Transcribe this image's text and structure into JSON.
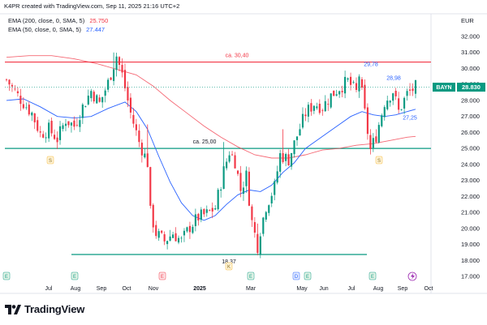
{
  "header": {
    "created": "K4PR created with TradingView.com, Sep 11, 2025 21:16 UTC+2",
    "currency": "EUR"
  },
  "indicators": [
    {
      "label": "EMA (200, close, 0, SMA, 5)",
      "value": "25.750",
      "color": "#f23645"
    },
    {
      "label": "EMA (50, close, 0, SMA, 5)",
      "value": "27.447",
      "color": "#2962ff"
    }
  ],
  "brand": {
    "name": "TradingView"
  },
  "chart_data": {
    "type": "candlestick",
    "symbol": "BAYN",
    "last_price": "28.830",
    "ylim": [
      17,
      33
    ],
    "y_ticks": [
      "17.000",
      "18.000",
      "19.000",
      "20.000",
      "21.000",
      "22.000",
      "23.000",
      "24.000",
      "25.000",
      "26.000",
      "27.000",
      "28.000",
      "29.000",
      "30.000",
      "31.000",
      "32.000"
    ],
    "x_ticks": [
      "Jul",
      "Aug",
      "Sep",
      "Oct",
      "Nov",
      "2025",
      "Mar",
      "May",
      "Jun",
      "Jul",
      "Aug",
      "Sep",
      "Oct"
    ],
    "price_path": [
      [
        0,
        29.3
      ],
      [
        4,
        28.3
      ],
      [
        9,
        27.2
      ],
      [
        12,
        25.9
      ],
      [
        15,
        26.2
      ],
      [
        18,
        25.6
      ],
      [
        21,
        26.8
      ],
      [
        24,
        26.4
      ],
      [
        27,
        27.6
      ],
      [
        30,
        28.6
      ],
      [
        33,
        27.8
      ],
      [
        36,
        29.1
      ],
      [
        39,
        30.8
      ],
      [
        41,
        29.6
      ],
      [
        44,
        27.2
      ],
      [
        47,
        25.4
      ],
      [
        50,
        24.1
      ],
      [
        51,
        21.0
      ],
      [
        53,
        19.7
      ],
      [
        56,
        19.2
      ],
      [
        59,
        19.7
      ],
      [
        62,
        19.2
      ],
      [
        65,
        20.1
      ],
      [
        68,
        20.7
      ],
      [
        71,
        20.9
      ],
      [
        74,
        21.3
      ],
      [
        77,
        23.6
      ],
      [
        79,
        24.8
      ],
      [
        81,
        24.2
      ],
      [
        83,
        22.4
      ],
      [
        85,
        23.3
      ],
      [
        87,
        20.4
      ],
      [
        89,
        18.9
      ],
      [
        90,
        19.9
      ],
      [
        92,
        21.4
      ],
      [
        95,
        22.6
      ],
      [
        97,
        24.6
      ],
      [
        100,
        24.3
      ],
      [
        103,
        25.8
      ],
      [
        106,
        27.2
      ],
      [
        109,
        27.8
      ],
      [
        112,
        27.6
      ],
      [
        115,
        28.3
      ],
      [
        118,
        28.8
      ],
      [
        121,
        29.2
      ],
      [
        124,
        28.5
      ],
      [
        125,
        29.6
      ],
      [
        127,
        27.2
      ],
      [
        129,
        24.9
      ],
      [
        131,
        25.8
      ],
      [
        134,
        27.9
      ],
      [
        137,
        28.6
      ],
      [
        139,
        27.3
      ],
      [
        142,
        28.4
      ],
      [
        145,
        28.83
      ]
    ],
    "ema50": [
      [
        0,
        28.0
      ],
      [
        6,
        28.1
      ],
      [
        12,
        27.6
      ],
      [
        18,
        27.0
      ],
      [
        24,
        26.9
      ],
      [
        30,
        27.0
      ],
      [
        36,
        27.5
      ],
      [
        42,
        27.9
      ],
      [
        46,
        27.3
      ],
      [
        50,
        26.2
      ],
      [
        54,
        24.5
      ],
      [
        58,
        22.9
      ],
      [
        62,
        21.6
      ],
      [
        66,
        20.8
      ],
      [
        70,
        20.5
      ],
      [
        74,
        20.8
      ],
      [
        78,
        21.5
      ],
      [
        82,
        22.1
      ],
      [
        86,
        22.4
      ],
      [
        90,
        22.3
      ],
      [
        94,
        22.7
      ],
      [
        98,
        23.5
      ],
      [
        102,
        24.1
      ],
      [
        106,
        25.0
      ],
      [
        110,
        25.5
      ],
      [
        114,
        26.0
      ],
      [
        118,
        26.5
      ],
      [
        122,
        27.0
      ],
      [
        126,
        27.3
      ],
      [
        130,
        27.1
      ],
      [
        134,
        27.0
      ],
      [
        138,
        27.1
      ],
      [
        142,
        27.3
      ],
      [
        145,
        27.45
      ]
    ],
    "ema200": [
      [
        0,
        30.7
      ],
      [
        8,
        30.8
      ],
      [
        16,
        30.8
      ],
      [
        24,
        30.6
      ],
      [
        32,
        30.3
      ],
      [
        40,
        29.9
      ],
      [
        46,
        29.6
      ],
      [
        52,
        28.9
      ],
      [
        58,
        28.0
      ],
      [
        64,
        27.2
      ],
      [
        70,
        26.4
      ],
      [
        76,
        25.7
      ],
      [
        82,
        25.1
      ],
      [
        88,
        24.6
      ],
      [
        94,
        24.4
      ],
      [
        100,
        24.4
      ],
      [
        106,
        24.6
      ],
      [
        112,
        24.9
      ],
      [
        118,
        25.0
      ],
      [
        124,
        25.2
      ],
      [
        130,
        25.3
      ],
      [
        136,
        25.5
      ],
      [
        142,
        25.7
      ],
      [
        145,
        25.75
      ]
    ],
    "horizontal_levels": [
      {
        "value": 30.4,
        "label": "ca. 30,40",
        "color": "#f23645"
      },
      {
        "value": 25.0,
        "label": "ca. 25,00",
        "color": "#089981"
      },
      {
        "value": 18.37,
        "label": "18,37",
        "color": "#089981"
      }
    ],
    "annotations": [
      "29,78",
      "28,98",
      "27,25"
    ],
    "event_markers": [
      {
        "letter": "E",
        "type": "earnings"
      },
      {
        "letter": "E",
        "type": "earnings"
      },
      {
        "letter": "E",
        "type": "earnings"
      },
      {
        "letter": "E",
        "type": "earnings"
      },
      {
        "letter": "D",
        "type": "dividend"
      },
      {
        "letter": "E",
        "type": "earnings"
      },
      {
        "letter": "E",
        "type": "earnings"
      },
      {
        "letter": "S",
        "type": "split"
      },
      {
        "letter": "S",
        "type": "split"
      },
      {
        "letter": "K",
        "type": "note"
      }
    ],
    "colors": {
      "up": "#089981",
      "down": "#f23645",
      "ema50": "#2962ff",
      "ema200": "#f23645",
      "level": "#089981",
      "resistance": "#f23645"
    }
  }
}
